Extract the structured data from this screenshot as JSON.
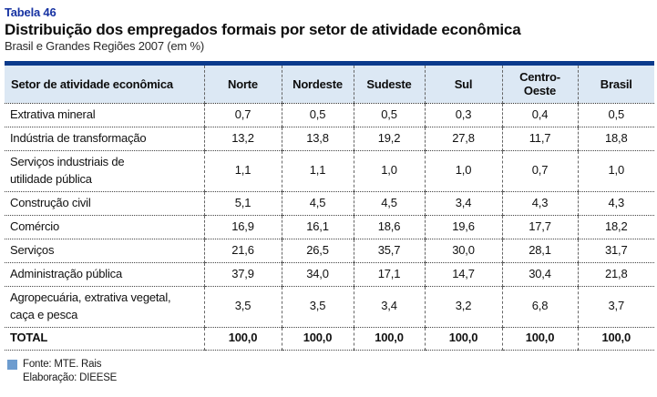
{
  "header": {
    "table_number": "Tabela 46",
    "title": "Distribuição dos empregados formais por setor de atividade econômica",
    "subtitle": "Brasil e Grandes Regiões 2007 (em %)"
  },
  "table": {
    "columns": [
      "Setor de atividade econômica",
      "Norte",
      "Nordeste",
      "Sudeste",
      "Sul",
      "Centro-\nOeste",
      "Brasil"
    ],
    "rows": [
      {
        "label": "Extrativa mineral",
        "values": [
          "0,7",
          "0,5",
          "0,5",
          "0,3",
          "0,4",
          "0,5"
        ],
        "bold": false,
        "multiline": false
      },
      {
        "label": "Indústria de transformação",
        "values": [
          "13,2",
          "13,8",
          "19,2",
          "27,8",
          "11,7",
          "18,8"
        ],
        "bold": false,
        "multiline": false
      },
      {
        "label": "Serviços industriais de\nutilidade pública",
        "values": [
          "1,1",
          "1,1",
          "1,0",
          "1,0",
          "0,7",
          "1,0"
        ],
        "bold": false,
        "multiline": true
      },
      {
        "label": "Construção civil",
        "values": [
          "5,1",
          "4,5",
          "4,5",
          "3,4",
          "4,3",
          "4,3"
        ],
        "bold": false,
        "multiline": false
      },
      {
        "label": "Comércio",
        "values": [
          "16,9",
          "16,1",
          "18,6",
          "19,6",
          "17,7",
          "18,2"
        ],
        "bold": false,
        "multiline": false
      },
      {
        "label": "Serviços",
        "values": [
          "21,6",
          "26,5",
          "35,7",
          "30,0",
          "28,1",
          "31,7"
        ],
        "bold": false,
        "multiline": false
      },
      {
        "label": "Administração pública",
        "values": [
          "37,9",
          "34,0",
          "17,1",
          "14,7",
          "30,4",
          "21,8"
        ],
        "bold": false,
        "multiline": false
      },
      {
        "label": "Agropecuária, extrativa vegetal,\ncaça e pesca",
        "values": [
          "3,5",
          "3,5",
          "3,4",
          "3,2",
          "6,8",
          "3,7"
        ],
        "bold": false,
        "multiline": true
      },
      {
        "label": "TOTAL",
        "values": [
          "100,0",
          "100,0",
          "100,0",
          "100,0",
          "100,0",
          "100,0"
        ],
        "bold": true,
        "multiline": false
      }
    ]
  },
  "footer": {
    "source": "Fonte: MTE. Rais",
    "elaboration": "Elaboração: DIEESE"
  },
  "colors": {
    "accent_bar": "#0a3a8c",
    "header_bg": "#dce8f4",
    "title_blue": "#1632a2",
    "footer_square": "#6d9ccf"
  }
}
